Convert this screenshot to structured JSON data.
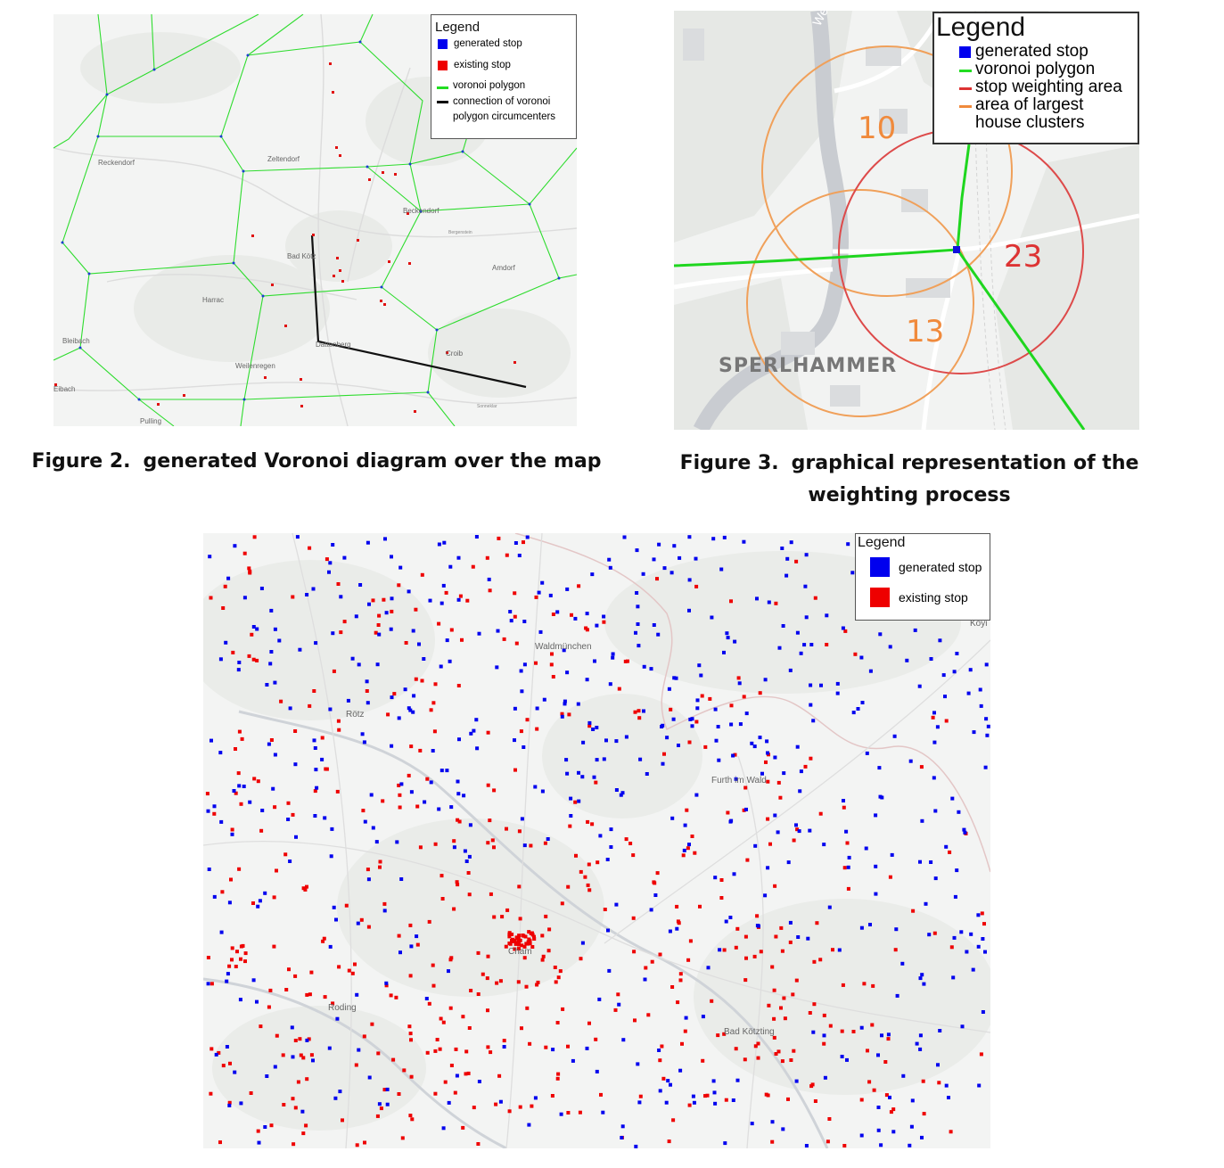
{
  "figures": [
    {
      "number": "Figure 2.",
      "caption": "generated Voronoi diagram over the map",
      "legend": {
        "title": "Legend",
        "items": [
          {
            "label": "generated stop",
            "color": "#0000ee",
            "symbol": "square"
          },
          {
            "label": "existing stop",
            "color": "#ee0000",
            "symbol": "square"
          },
          {
            "label": "voronoi polygon",
            "color": "#22dd22",
            "symbol": "line"
          },
          {
            "label": "connection of voronoi polygon circumcenters",
            "color": "#000000",
            "symbol": "line"
          }
        ]
      },
      "place_labels": [
        "Reckendorf",
        "Zeltendorf",
        "Beckendorf",
        "Bad Kötz",
        "Amdorf",
        "Harrac",
        "Bleibach",
        "Weilenregen",
        "Dattenberg",
        "Croib",
        "Pulling",
        "Eibach",
        "Bergenstein",
        "Sonneklar"
      ]
    },
    {
      "number": "Figure 3.",
      "caption": "graphical representation of the weighting process",
      "legend": {
        "title": "Legend",
        "items": [
          {
            "label": "generated stop",
            "color": "#0000ee",
            "symbol": "square"
          },
          {
            "label": "voronoi polygon",
            "color": "#22dd22",
            "symbol": "line"
          },
          {
            "label": "stop weighting area",
            "color": "#dd3333",
            "symbol": "line"
          },
          {
            "label": "area of largest house clusters",
            "color": "#f08a3c",
            "symbol": "line"
          }
        ]
      },
      "circle_values": [
        "10",
        "23",
        "13"
      ],
      "place_label": "SPERLHAMMER",
      "street_label": "Weiße"
    },
    {
      "legend": {
        "title": "Legend",
        "items": [
          {
            "label": "generated stop",
            "color": "#0000ee",
            "symbol": "square"
          },
          {
            "label": "existing stop",
            "color": "#ee0000",
            "symbol": "square"
          }
        ]
      },
      "place_labels": [
        "Waldmünchen",
        "Furth im Wald",
        "Cham",
        "Roding",
        "Bad Kötzting",
        "Rötz",
        "Koyi"
      ]
    }
  ]
}
